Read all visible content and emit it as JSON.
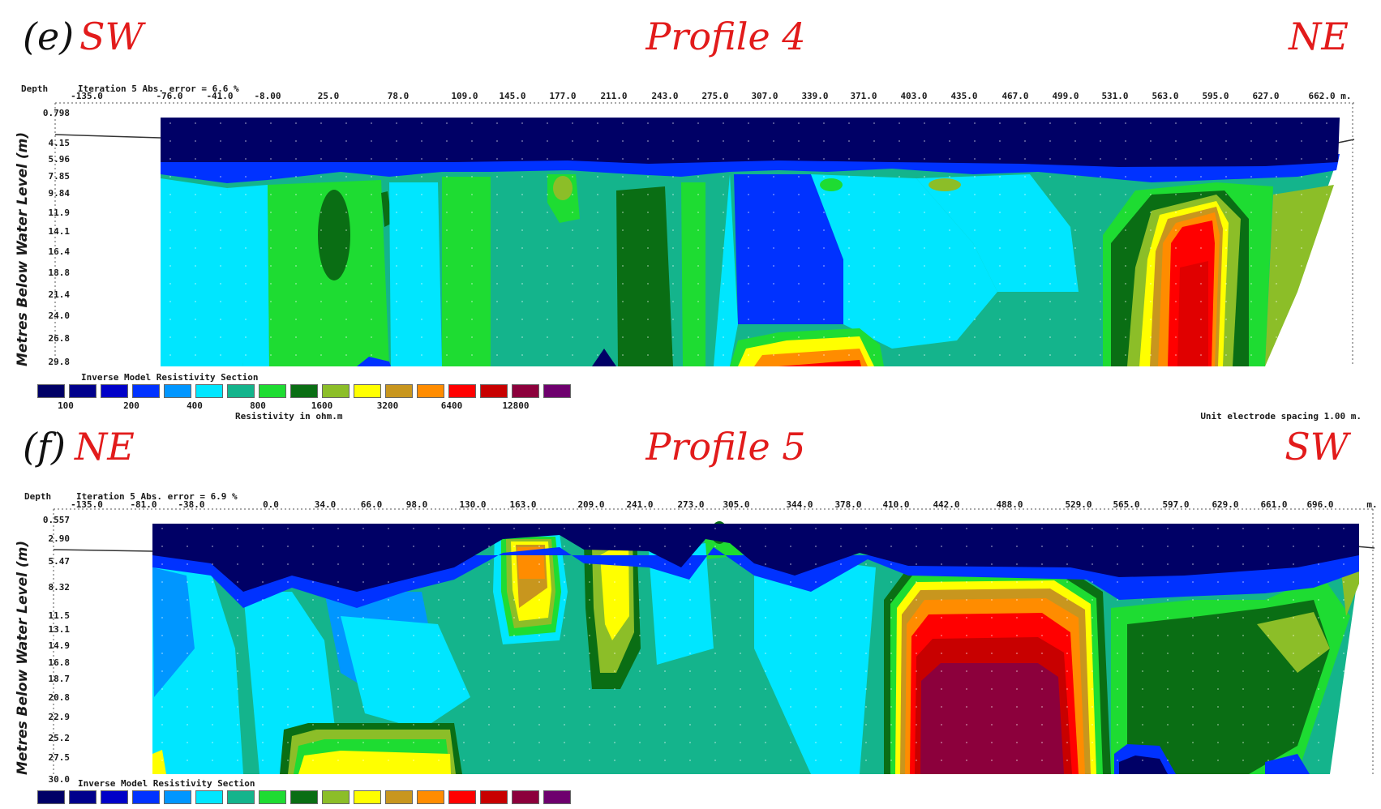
{
  "palette": [
    "#000066",
    "#00008c",
    "#0000c8",
    "#0032ff",
    "#0096ff",
    "#00e6ff",
    "#14b48c",
    "#1edc32",
    "#0a6e14",
    "#8cbe28",
    "#ffff00",
    "#c8961e",
    "#ff8c00",
    "#ff0000",
    "#c80000",
    "#8c003c",
    "#6e006e"
  ],
  "legend": {
    "title": "Inverse Model Resistivity Section",
    "values": [
      "100",
      "200",
      "400",
      "800",
      "1600",
      "3200",
      "6400",
      "12800"
    ],
    "unit": "Resistivity in ohm.m",
    "spacing": "Unit electrode spacing 1.00 m."
  },
  "profiles": [
    {
      "letter": "(e)",
      "dir_left": "SW",
      "title": "Profile 4",
      "dir_right": "NE",
      "depth_label": "Depth",
      "iteration": "Iteration 5 Abs. error = 6.6 %",
      "ylabel": "Metres Below Water Level (m)",
      "x_ticks": [
        "-135.0",
        "-76.0",
        "-41.0",
        "-8.00",
        "25.0",
        "78.0",
        "109.0",
        "145.0",
        "177.0",
        "211.0",
        "243.0",
        "275.0",
        "307.0",
        "339.0",
        "371.0",
        "403.0",
        "435.0",
        "467.0",
        "499.0",
        "531.0",
        "563.0",
        "595.0",
        "627.0",
        "662.0 m."
      ],
      "depth_ticks": [
        "0.798",
        "4.15",
        "5.96",
        "7.85",
        "9.84",
        "11.9",
        "14.1",
        "16.4",
        "18.8",
        "21.4",
        "24.0",
        "26.8",
        "29.8"
      ],
      "show_spacing": true
    },
    {
      "letter": "(f)",
      "dir_left": "NE",
      "title": "Profile 5",
      "dir_right": "SW",
      "depth_label": "Depth",
      "iteration": "Iteration 5 Abs. error = 6.9 %",
      "ylabel": "Metres Below Water Level (m)",
      "x_ticks": [
        "-135.0",
        "-81.0",
        "-38.0",
        "0.0",
        "34.0",
        "66.0",
        "98.0",
        "130.0",
        "163.0",
        "209.0",
        "241.0",
        "273.0",
        "305.0",
        "344.0",
        "378.0",
        "410.0",
        "442.0",
        "488.0",
        "529.0",
        "565.0",
        "597.0",
        "629.0",
        "661.0",
        "696.0",
        "m."
      ],
      "depth_ticks": [
        "0.557",
        "2.90",
        "5.47",
        "8.32",
        "11.5",
        "13.1",
        "14.9",
        "16.8",
        "18.7",
        "20.8",
        "22.9",
        "25.2",
        "27.5",
        "30.0"
      ],
      "show_spacing": false
    }
  ]
}
